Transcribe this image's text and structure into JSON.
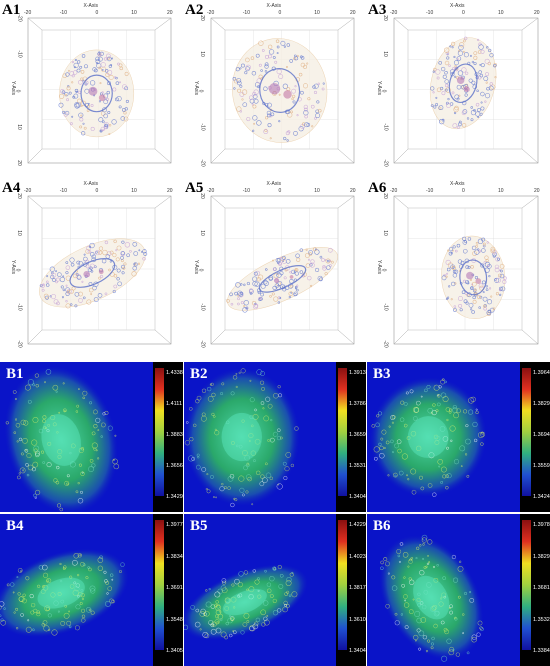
{
  "top_panels": [
    {
      "label": "A1",
      "x_title": "X-Axis",
      "y_title": "Y-Axis",
      "x_ticks": [
        "-20",
        "-10",
        "0",
        "10",
        "20"
      ],
      "y_ticks": [
        "-20",
        "-10",
        "0",
        "10",
        "20"
      ]
    },
    {
      "label": "A2",
      "x_title": "X-Axis",
      "y_title": "Y-Axis",
      "x_ticks": [
        "-20",
        "-10",
        "0",
        "10",
        "20"
      ],
      "y_ticks": [
        "20",
        "10",
        "0",
        "-10",
        "-20"
      ]
    },
    {
      "label": "A3",
      "x_title": "X-Axis",
      "y_title": "Y-Axis",
      "x_ticks": [
        "-20",
        "-10",
        "0",
        "10",
        "20"
      ],
      "y_ticks": [
        "20",
        "10",
        "0",
        "-10",
        "-20"
      ]
    },
    {
      "label": "A4",
      "x_title": "X-Axis",
      "y_title": "Y-Axis",
      "x_ticks": [
        "-20",
        "-10",
        "0",
        "10",
        "20"
      ],
      "y_ticks": [
        "20",
        "10",
        "0",
        "-10",
        "-20"
      ]
    },
    {
      "label": "A5",
      "x_title": "X-Axis",
      "y_title": "Y-Axis",
      "x_ticks": [
        "-20",
        "-10",
        "0",
        "10",
        "20"
      ],
      "y_ticks": [
        "20",
        "10",
        "0",
        "-10",
        "-20"
      ]
    },
    {
      "label": "A6",
      "x_title": "X-Axis",
      "y_title": "Y-Axis",
      "x_ticks": [
        "-20",
        "-10",
        "0",
        "10",
        "20"
      ],
      "y_ticks": [
        "20",
        "10",
        "0",
        "-10",
        "-20"
      ]
    }
  ],
  "bottom_panels": [
    {
      "label": "B1",
      "scale": [
        "1.4338",
        "1.4111",
        "1.3883",
        "1.3656",
        "1.3429"
      ]
    },
    {
      "label": "B2",
      "scale": [
        "1.3913",
        "1.3786",
        "1.3659",
        "1.3531",
        "1.3404"
      ]
    },
    {
      "label": "B3",
      "scale": [
        "1.3964",
        "1.3829",
        "1.3694",
        "1.3559",
        "1.3424"
      ]
    },
    {
      "label": "B4",
      "scale": [
        "1.3977",
        "1.3834",
        "1.3691",
        "1.3548",
        "1.3405"
      ]
    },
    {
      "label": "B5",
      "scale": [
        "1.4229",
        "1.4023",
        "1.3817",
        "1.3610",
        "1.3404"
      ]
    },
    {
      "label": "B6",
      "scale": [
        "1.3978",
        "1.3829",
        "1.3681",
        "1.3532",
        "1.3384"
      ]
    }
  ],
  "colors": {
    "ri_background": "#0a14c8",
    "colorbar_bg": "#000000"
  }
}
